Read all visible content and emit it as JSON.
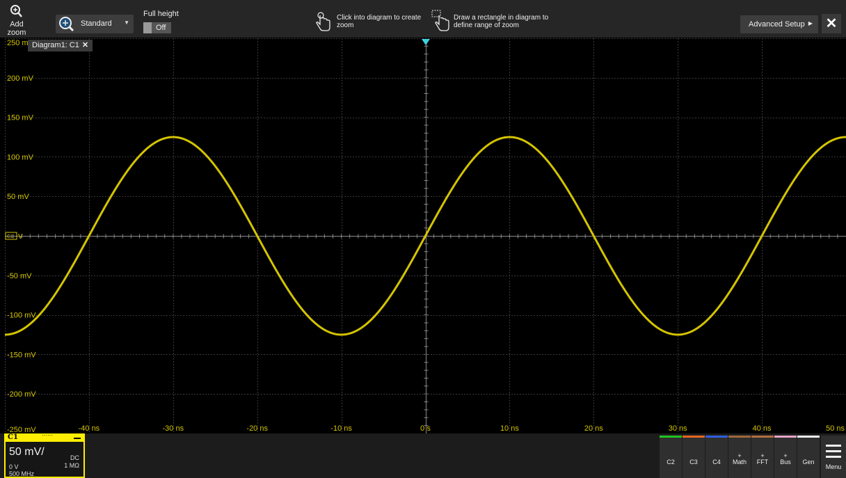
{
  "toolbar": {
    "add_zoom_label": "Add zoom",
    "zoom_mode_value": "Standard",
    "full_height_label": "Full height",
    "full_height_value": "Off",
    "hint_click": "Click into diagram to create zoom",
    "hint_draw": "Draw a rectangle in diagram to define range of zoom",
    "advanced_setup_label": "Advanced Setup",
    "close_label": "✕"
  },
  "diagram": {
    "tab_label": "Diagram1: C1",
    "tab_close": "✕",
    "trace_color": "#d4c400",
    "ref_marker": "C1",
    "ref_marker_unit": "V"
  },
  "chart_data": {
    "type": "line",
    "title": "",
    "xlabel": "",
    "ylabel": "",
    "x_unit": "ns",
    "y_unit": "mV",
    "xlim": [
      -50,
      50
    ],
    "ylim": [
      -250,
      250
    ],
    "grid": true,
    "y_tick_labels": [
      "250 mV",
      "200 mV",
      "150 mV",
      "100 mV",
      "50 mV",
      "0 V",
      "-50 mV",
      "-100 mV",
      "-150 mV",
      "-200 mV",
      "-250 mV"
    ],
    "x_tick_labels": [
      "-40 ns",
      "-30 ns",
      "-20 ns",
      "-10 ns",
      "0 s",
      "10 ns",
      "20 ns",
      "30 ns",
      "40 ns",
      "50 ns"
    ],
    "series": [
      {
        "waveform": "sine",
        "amplitude_mV": 125,
        "period_ns": 40,
        "zero_crossing_rising_ns": 0,
        "x": [
          -50,
          -40,
          -30,
          -20,
          -10,
          0,
          10,
          20,
          30,
          40,
          50
        ],
        "y": [
          -125,
          0,
          125,
          0,
          -125,
          0,
          125,
          0,
          -125,
          0,
          125
        ]
      }
    ]
  },
  "channel_panel": {
    "name": "C1",
    "indicator": "······",
    "scale": "50 mV/",
    "coupling": "DC",
    "impedance": "1 MΩ",
    "offset": "0 V",
    "bandwidth": "500 MHz"
  },
  "channel_buttons": [
    {
      "plus": "",
      "label": "C2",
      "color": "#22c422"
    },
    {
      "plus": "",
      "label": "C3",
      "color": "#e8691f"
    },
    {
      "plus": "",
      "label": "C4",
      "color": "#2f5fe0"
    },
    {
      "plus": "+",
      "label": "Math",
      "color": "#a0683a"
    },
    {
      "plus": "+",
      "label": "FFT",
      "color": "#b07040"
    },
    {
      "plus": "+",
      "label": "Bus",
      "color": "#e6a6c8"
    },
    {
      "plus": "",
      "label": "Gen",
      "color": "#f0f0f0"
    }
  ],
  "menu_label": "Menu"
}
